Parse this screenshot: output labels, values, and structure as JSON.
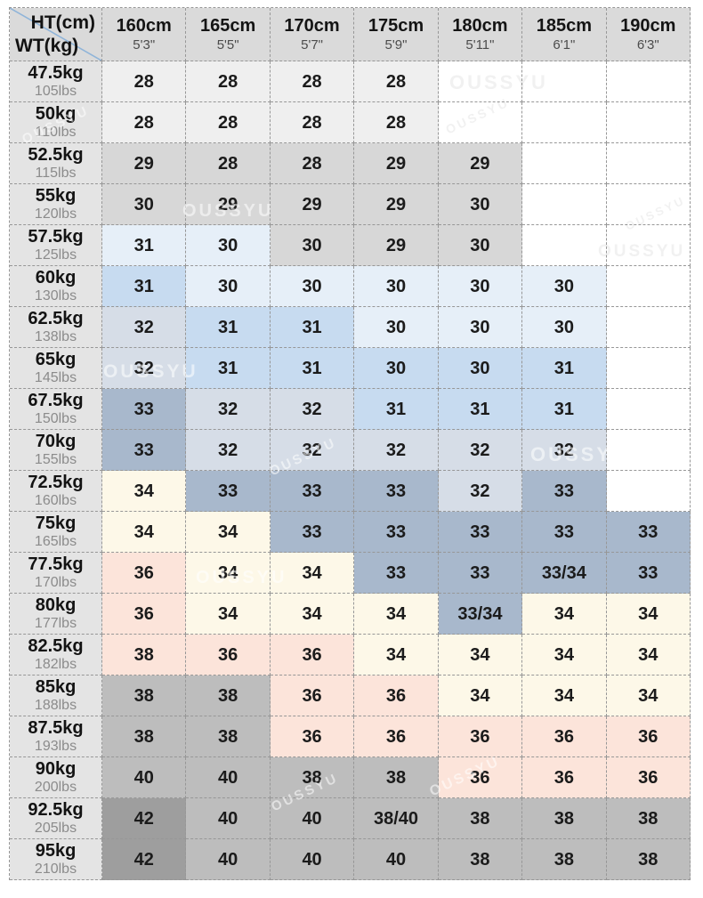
{
  "watermark": {
    "text": "OUSSYU"
  },
  "colors": {
    "W": "#ffffff",
    "LG": "#efefef",
    "G": "#d7d7d7",
    "PB": "#e6eff8",
    "B": "#c7dbf0",
    "BG": "#d6dde7",
    "DB": "#a8b8cc",
    "CR": "#fdf8e8",
    "PK": "#fce4da",
    "GR": "#bdbdbd",
    "DG": "#9e9e9e",
    "header_bg": "#dadada",
    "rowhead_bg": "#e4e4e4",
    "border": "#979797",
    "diagonal_line": "#8fb4d9"
  },
  "chart_data": {
    "type": "table",
    "title": "Height / Weight size chart",
    "corner": {
      "ht": "HT(cm)",
      "wt": "WT(kg)"
    },
    "columns": [
      {
        "cm": "160cm",
        "ftin": "5'3\""
      },
      {
        "cm": "165cm",
        "ftin": "5'5\""
      },
      {
        "cm": "170cm",
        "ftin": "5'7\""
      },
      {
        "cm": "175cm",
        "ftin": "5'9\""
      },
      {
        "cm": "180cm",
        "ftin": "5'11\""
      },
      {
        "cm": "185cm",
        "ftin": "6'1\""
      },
      {
        "cm": "190cm",
        "ftin": "6'3\""
      }
    ],
    "rows": [
      {
        "kg": "47.5kg",
        "lbs": "105lbs",
        "cells": [
          {
            "v": "28",
            "c": "LG"
          },
          {
            "v": "28",
            "c": "LG"
          },
          {
            "v": "28",
            "c": "LG"
          },
          {
            "v": "28",
            "c": "LG"
          },
          {
            "v": "",
            "c": "W"
          },
          {
            "v": "",
            "c": "W"
          },
          {
            "v": "",
            "c": "W"
          }
        ]
      },
      {
        "kg": "50kg",
        "lbs": "110lbs",
        "cells": [
          {
            "v": "28",
            "c": "LG"
          },
          {
            "v": "28",
            "c": "LG"
          },
          {
            "v": "28",
            "c": "LG"
          },
          {
            "v": "28",
            "c": "LG"
          },
          {
            "v": "",
            "c": "W"
          },
          {
            "v": "",
            "c": "W"
          },
          {
            "v": "",
            "c": "W"
          }
        ]
      },
      {
        "kg": "52.5kg",
        "lbs": "115lbs",
        "cells": [
          {
            "v": "29",
            "c": "G"
          },
          {
            "v": "28",
            "c": "G"
          },
          {
            "v": "28",
            "c": "G"
          },
          {
            "v": "29",
            "c": "G"
          },
          {
            "v": "29",
            "c": "G"
          },
          {
            "v": "",
            "c": "W"
          },
          {
            "v": "",
            "c": "W"
          }
        ]
      },
      {
        "kg": "55kg",
        "lbs": "120lbs",
        "cells": [
          {
            "v": "30",
            "c": "G"
          },
          {
            "v": "29",
            "c": "G"
          },
          {
            "v": "29",
            "c": "G"
          },
          {
            "v": "29",
            "c": "G"
          },
          {
            "v": "30",
            "c": "G"
          },
          {
            "v": "",
            "c": "W"
          },
          {
            "v": "",
            "c": "W"
          }
        ]
      },
      {
        "kg": "57.5kg",
        "lbs": "125lbs",
        "cells": [
          {
            "v": "31",
            "c": "PB"
          },
          {
            "v": "30",
            "c": "PB"
          },
          {
            "v": "30",
            "c": "G"
          },
          {
            "v": "29",
            "c": "G"
          },
          {
            "v": "30",
            "c": "G"
          },
          {
            "v": "",
            "c": "W"
          },
          {
            "v": "",
            "c": "W"
          }
        ]
      },
      {
        "kg": "60kg",
        "lbs": "130lbs",
        "cells": [
          {
            "v": "31",
            "c": "B"
          },
          {
            "v": "30",
            "c": "PB"
          },
          {
            "v": "30",
            "c": "PB"
          },
          {
            "v": "30",
            "c": "PB"
          },
          {
            "v": "30",
            "c": "PB"
          },
          {
            "v": "30",
            "c": "PB"
          },
          {
            "v": "",
            "c": "W"
          }
        ]
      },
      {
        "kg": "62.5kg",
        "lbs": "138lbs",
        "cells": [
          {
            "v": "32",
            "c": "BG"
          },
          {
            "v": "31",
            "c": "B"
          },
          {
            "v": "31",
            "c": "B"
          },
          {
            "v": "30",
            "c": "PB"
          },
          {
            "v": "30",
            "c": "PB"
          },
          {
            "v": "30",
            "c": "PB"
          },
          {
            "v": "",
            "c": "W"
          }
        ]
      },
      {
        "kg": "65kg",
        "lbs": "145lbs",
        "cells": [
          {
            "v": "32",
            "c": "BG"
          },
          {
            "v": "31",
            "c": "B"
          },
          {
            "v": "31",
            "c": "B"
          },
          {
            "v": "30",
            "c": "B"
          },
          {
            "v": "30",
            "c": "B"
          },
          {
            "v": "31",
            "c": "B"
          },
          {
            "v": "",
            "c": "W"
          }
        ]
      },
      {
        "kg": "67.5kg",
        "lbs": "150lbs",
        "cells": [
          {
            "v": "33",
            "c": "DB"
          },
          {
            "v": "32",
            "c": "BG"
          },
          {
            "v": "32",
            "c": "BG"
          },
          {
            "v": "31",
            "c": "B"
          },
          {
            "v": "31",
            "c": "B"
          },
          {
            "v": "31",
            "c": "B"
          },
          {
            "v": "",
            "c": "W"
          }
        ]
      },
      {
        "kg": "70kg",
        "lbs": "155lbs",
        "cells": [
          {
            "v": "33",
            "c": "DB"
          },
          {
            "v": "32",
            "c": "BG"
          },
          {
            "v": "32",
            "c": "BG"
          },
          {
            "v": "32",
            "c": "BG"
          },
          {
            "v": "32",
            "c": "BG"
          },
          {
            "v": "32",
            "c": "BG"
          },
          {
            "v": "",
            "c": "W"
          }
        ]
      },
      {
        "kg": "72.5kg",
        "lbs": "160lbs",
        "cells": [
          {
            "v": "34",
            "c": "CR"
          },
          {
            "v": "33",
            "c": "DB"
          },
          {
            "v": "33",
            "c": "DB"
          },
          {
            "v": "33",
            "c": "DB"
          },
          {
            "v": "32",
            "c": "BG"
          },
          {
            "v": "33",
            "c": "DB"
          },
          {
            "v": "",
            "c": "W"
          }
        ]
      },
      {
        "kg": "75kg",
        "lbs": "165lbs",
        "cells": [
          {
            "v": "34",
            "c": "CR"
          },
          {
            "v": "34",
            "c": "CR"
          },
          {
            "v": "33",
            "c": "DB"
          },
          {
            "v": "33",
            "c": "DB"
          },
          {
            "v": "33",
            "c": "DB"
          },
          {
            "v": "33",
            "c": "DB"
          },
          {
            "v": "33",
            "c": "DB"
          }
        ]
      },
      {
        "kg": "77.5kg",
        "lbs": "170lbs",
        "cells": [
          {
            "v": "36",
            "c": "PK"
          },
          {
            "v": "34",
            "c": "CR"
          },
          {
            "v": "34",
            "c": "CR"
          },
          {
            "v": "33",
            "c": "DB"
          },
          {
            "v": "33",
            "c": "DB"
          },
          {
            "v": "33/34",
            "c": "DB"
          },
          {
            "v": "33",
            "c": "DB"
          }
        ]
      },
      {
        "kg": "80kg",
        "lbs": "177lbs",
        "cells": [
          {
            "v": "36",
            "c": "PK"
          },
          {
            "v": "34",
            "c": "CR"
          },
          {
            "v": "34",
            "c": "CR"
          },
          {
            "v": "34",
            "c": "CR"
          },
          {
            "v": "33/34",
            "c": "DB"
          },
          {
            "v": "34",
            "c": "CR"
          },
          {
            "v": "34",
            "c": "CR"
          }
        ]
      },
      {
        "kg": "82.5kg",
        "lbs": "182lbs",
        "cells": [
          {
            "v": "38",
            "c": "PK"
          },
          {
            "v": "36",
            "c": "PK"
          },
          {
            "v": "36",
            "c": "PK"
          },
          {
            "v": "34",
            "c": "CR"
          },
          {
            "v": "34",
            "c": "CR"
          },
          {
            "v": "34",
            "c": "CR"
          },
          {
            "v": "34",
            "c": "CR"
          }
        ]
      },
      {
        "kg": "85kg",
        "lbs": "188lbs",
        "cells": [
          {
            "v": "38",
            "c": "GR"
          },
          {
            "v": "38",
            "c": "GR"
          },
          {
            "v": "36",
            "c": "PK"
          },
          {
            "v": "36",
            "c": "PK"
          },
          {
            "v": "34",
            "c": "CR"
          },
          {
            "v": "34",
            "c": "CR"
          },
          {
            "v": "34",
            "c": "CR"
          }
        ]
      },
      {
        "kg": "87.5kg",
        "lbs": "193lbs",
        "cells": [
          {
            "v": "38",
            "c": "GR"
          },
          {
            "v": "38",
            "c": "GR"
          },
          {
            "v": "36",
            "c": "PK"
          },
          {
            "v": "36",
            "c": "PK"
          },
          {
            "v": "36",
            "c": "PK"
          },
          {
            "v": "36",
            "c": "PK"
          },
          {
            "v": "36",
            "c": "PK"
          }
        ]
      },
      {
        "kg": "90kg",
        "lbs": "200lbs",
        "cells": [
          {
            "v": "40",
            "c": "GR"
          },
          {
            "v": "40",
            "c": "GR"
          },
          {
            "v": "38",
            "c": "GR"
          },
          {
            "v": "38",
            "c": "GR"
          },
          {
            "v": "36",
            "c": "PK"
          },
          {
            "v": "36",
            "c": "PK"
          },
          {
            "v": "36",
            "c": "PK"
          }
        ]
      },
      {
        "kg": "92.5kg",
        "lbs": "205lbs",
        "cells": [
          {
            "v": "42",
            "c": "DG"
          },
          {
            "v": "40",
            "c": "GR"
          },
          {
            "v": "40",
            "c": "GR"
          },
          {
            "v": "38/40",
            "c": "GR"
          },
          {
            "v": "38",
            "c": "GR"
          },
          {
            "v": "38",
            "c": "GR"
          },
          {
            "v": "38",
            "c": "GR"
          }
        ]
      },
      {
        "kg": "95kg",
        "lbs": "210lbs",
        "cells": [
          {
            "v": "42",
            "c": "DG"
          },
          {
            "v": "40",
            "c": "GR"
          },
          {
            "v": "40",
            "c": "GR"
          },
          {
            "v": "40",
            "c": "GR"
          },
          {
            "v": "38",
            "c": "GR"
          },
          {
            "v": "38",
            "c": "GR"
          },
          {
            "v": "38",
            "c": "GR"
          }
        ]
      }
    ]
  }
}
